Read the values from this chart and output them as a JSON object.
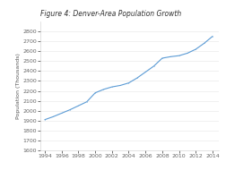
{
  "title": "Figure 4: Denver-Area Population Growth",
  "ylabel": "Population (Thousands)",
  "xlabel": "",
  "years": [
    1994,
    1995,
    1996,
    1997,
    1998,
    1999,
    2000,
    2001,
    2002,
    2003,
    2004,
    2005,
    2006,
    2007,
    2008,
    2009,
    2010,
    2011,
    2012,
    2013,
    2014
  ],
  "population": [
    1910,
    1940,
    1975,
    2010,
    2050,
    2090,
    2180,
    2215,
    2240,
    2255,
    2280,
    2330,
    2390,
    2450,
    2530,
    2545,
    2555,
    2580,
    2620,
    2680,
    2750
  ],
  "line_color": "#5b9bd5",
  "background_color": "#ffffff",
  "ylim": [
    1600,
    2900
  ],
  "yticks": [
    1600,
    1700,
    1800,
    1900,
    2000,
    2100,
    2200,
    2300,
    2400,
    2500,
    2600,
    2700,
    2800
  ],
  "xticks": [
    1994,
    1996,
    1998,
    2000,
    2002,
    2004,
    2006,
    2008,
    2010,
    2012,
    2014
  ],
  "title_fontsize": 5.5,
  "axis_fontsize": 4.5,
  "tick_fontsize": 4.5,
  "line_width": 0.8
}
